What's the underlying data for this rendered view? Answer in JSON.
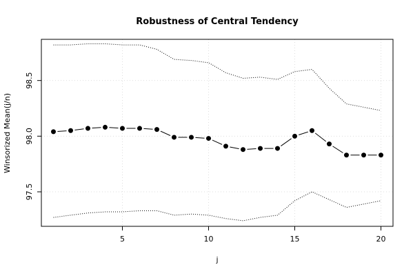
{
  "chart_data": {
    "type": "line",
    "title": "Robustness of Central Tendency",
    "xlabel": "j",
    "ylabel": "Winsorized Mean(j/n)",
    "xlim": [
      0.3,
      20.7
    ],
    "ylim": [
      97.19,
      98.87
    ],
    "xticks": [
      5,
      10,
      15,
      20
    ],
    "yticks": [
      97.5,
      98.0,
      98.5
    ],
    "x_tick_labels": [
      "5",
      "10",
      "15",
      "20"
    ],
    "y_tick_labels": [
      "97.5",
      "98.0",
      "98.5"
    ],
    "grid": true,
    "x": [
      1,
      2,
      3,
      4,
      5,
      6,
      7,
      8,
      9,
      10,
      11,
      12,
      13,
      14,
      15,
      16,
      17,
      18,
      19,
      20
    ],
    "series": [
      {
        "style": "line-with-points",
        "color": "#000000",
        "values": [
          98.04,
          98.05,
          98.07,
          98.08,
          98.07,
          98.07,
          98.06,
          97.99,
          97.99,
          97.98,
          97.91,
          97.88,
          97.89,
          97.89,
          98.0,
          98.05,
          97.93,
          97.83,
          97.83,
          97.83
        ]
      },
      {
        "style": "dotted",
        "color": "#000000",
        "values": [
          98.82,
          98.82,
          98.83,
          98.83,
          98.82,
          98.82,
          98.78,
          98.69,
          98.68,
          98.66,
          98.57,
          98.52,
          98.53,
          98.51,
          98.58,
          98.6,
          98.43,
          98.29,
          98.26,
          98.23
        ]
      },
      {
        "style": "dotted",
        "color": "#000000",
        "values": [
          97.27,
          97.29,
          97.31,
          97.32,
          97.32,
          97.33,
          97.33,
          97.29,
          97.3,
          97.29,
          97.26,
          97.24,
          97.27,
          97.29,
          97.42,
          97.5,
          97.43,
          97.36,
          97.39,
          97.42
        ]
      }
    ]
  }
}
